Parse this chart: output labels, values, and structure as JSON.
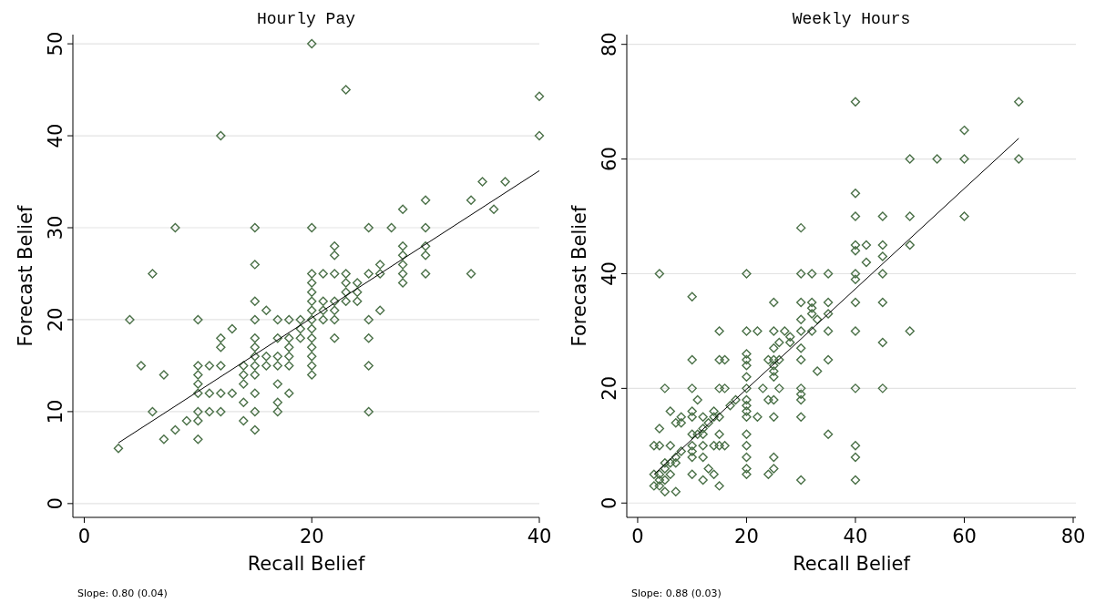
{
  "chart_data": [
    {
      "type": "scatter",
      "title": "Hourly Pay",
      "xlabel": "Recall Belief",
      "ylabel": "Forecast Belief",
      "xlim": [
        -1,
        40
      ],
      "ylim": [
        -1.5,
        51
      ],
      "xticks": [
        0,
        20,
        40
      ],
      "yticks": [
        0,
        10,
        20,
        30,
        40,
        50
      ],
      "grid": "y",
      "marker": "diamond",
      "annotations": [
        "Slope: 0.80 (0.04)"
      ],
      "series": [
        {
          "color": "#4a7047",
          "x": [
            3,
            4,
            5,
            6,
            6,
            7,
            7,
            8,
            8,
            9,
            10,
            10,
            10,
            10,
            10,
            10,
            10,
            10,
            11,
            11,
            11,
            12,
            12,
            12,
            12,
            12,
            12,
            13,
            13,
            14,
            14,
            14,
            14,
            14,
            15,
            15,
            15,
            15,
            15,
            15,
            15,
            15,
            15,
            15,
            15,
            15,
            16,
            16,
            16,
            17,
            17,
            17,
            17,
            17,
            17,
            17,
            18,
            18,
            18,
            18,
            18,
            18,
            19,
            19,
            19,
            20,
            20,
            20,
            20,
            20,
            20,
            20,
            20,
            20,
            20,
            20,
            20,
            20,
            20,
            21,
            21,
            21,
            21,
            22,
            22,
            22,
            22,
            22,
            22,
            22,
            23,
            23,
            23,
            23,
            23,
            24,
            24,
            24,
            25,
            25,
            25,
            25,
            25,
            25,
            26,
            26,
            26,
            27,
            28,
            28,
            28,
            28,
            28,
            28,
            30,
            30,
            30,
            30,
            30,
            34,
            34,
            35,
            36,
            37,
            40,
            40
          ],
          "values": [
            6,
            20,
            15,
            10,
            25,
            7,
            14,
            8,
            30,
            9,
            20,
            15,
            14,
            13,
            12,
            10,
            9,
            7,
            12,
            15,
            10,
            40,
            18,
            17,
            15,
            12,
            10,
            19,
            12,
            15,
            14,
            13,
            11,
            9,
            30,
            26,
            22,
            20,
            18,
            17,
            16,
            15,
            14,
            12,
            10,
            8,
            21,
            15,
            16,
            20,
            18,
            16,
            15,
            13,
            11,
            10,
            20,
            18,
            17,
            16,
            15,
            12,
            19,
            18,
            20,
            50,
            30,
            25,
            24,
            23,
            22,
            21,
            20,
            19,
            18,
            17,
            16,
            15,
            14,
            25,
            22,
            20,
            21,
            28,
            27,
            25,
            22,
            21,
            20,
            18,
            45,
            23,
            24,
            22,
            25,
            24,
            23,
            22,
            30,
            25,
            20,
            18,
            15,
            10,
            26,
            21,
            25,
            30,
            28,
            27,
            26,
            25,
            24,
            32,
            33,
            30,
            28,
            27,
            25,
            33,
            25,
            35,
            32,
            35,
            44.3,
            40
          ]
        },
        {
          "type": "line",
          "color": "#000000",
          "marker": "none",
          "x": [
            3,
            40
          ],
          "values": [
            6.6,
            36.2
          ]
        }
      ]
    },
    {
      "type": "scatter",
      "title": "Weekly Hours",
      "xlabel": "Recall Belief",
      "ylabel": "Forecast Belief",
      "xlim": [
        -2,
        80.5
      ],
      "ylim": [
        -2.5,
        81.7
      ],
      "xticks": [
        0,
        20,
        40,
        60,
        80
      ],
      "yticks": [
        0,
        20,
        40,
        60,
        80
      ],
      "grid": "y",
      "marker": "diamond",
      "annotations": [
        "Slope: 0.88 (0.03)"
      ],
      "series": [
        {
          "color": "#4a7047",
          "x": [
            70,
            70,
            40,
            60,
            60,
            55,
            50,
            40,
            40,
            45,
            50,
            60,
            40,
            42,
            45,
            50,
            40,
            42,
            45,
            40,
            40,
            45,
            30,
            30,
            32,
            35,
            20,
            4,
            10,
            25,
            30,
            32,
            35,
            40,
            45,
            32,
            32,
            33,
            30,
            35,
            30,
            32,
            35,
            40,
            50,
            45,
            15,
            20,
            22,
            25,
            27,
            28,
            28,
            26,
            25,
            30,
            30,
            35,
            25,
            26,
            24,
            25,
            25,
            25,
            33,
            20,
            20,
            20,
            20,
            10,
            15,
            16,
            5,
            10,
            15,
            16,
            20,
            23,
            26,
            30,
            30,
            30,
            40,
            45,
            11,
            20,
            24,
            25,
            18,
            17,
            6,
            10,
            20,
            20,
            20,
            22,
            25,
            30,
            8,
            7,
            8,
            10,
            12,
            14,
            15,
            14,
            13,
            12,
            4,
            10,
            11,
            12,
            15,
            20,
            35,
            3,
            4,
            6,
            10,
            12,
            14,
            15,
            16,
            20,
            40,
            10,
            8,
            7,
            10,
            12,
            20,
            25,
            40,
            5,
            6,
            7,
            13,
            20,
            25,
            3,
            4,
            5,
            6,
            10,
            14,
            20,
            24,
            3,
            4,
            5,
            4,
            5,
            7,
            12,
            15,
            30,
            40
          ],
          "values": [
            70,
            60,
            70,
            65,
            60,
            60,
            60,
            54,
            50,
            50,
            50,
            50,
            45,
            45,
            45,
            45,
            44,
            42,
            43,
            40,
            39,
            40,
            48,
            40,
            40,
            40,
            40,
            40,
            36,
            35,
            35,
            35,
            35,
            35,
            35,
            34,
            33,
            32,
            32,
            33,
            30,
            30,
            30,
            30,
            30,
            28,
            30,
            30,
            30,
            30,
            30,
            29,
            28,
            28,
            27,
            27,
            25,
            25,
            25,
            25,
            25,
            24,
            23,
            22,
            23,
            26,
            25,
            24,
            22,
            25,
            25,
            25,
            20,
            20,
            20,
            20,
            20,
            20,
            20,
            20,
            19,
            18,
            20,
            20,
            18,
            18,
            18,
            18,
            18,
            17,
            16,
            16,
            17,
            16,
            15,
            15,
            15,
            15,
            15,
            14,
            14,
            15,
            15,
            16,
            15,
            15,
            14,
            13,
            13,
            12,
            12,
            12,
            12,
            12,
            12,
            10,
            10,
            10,
            10,
            10,
            10,
            10,
            10,
            10,
            10,
            9,
            9,
            8,
            8,
            8,
            8,
            8,
            8,
            7,
            7,
            7,
            6,
            6,
            6,
            5,
            5,
            6,
            5,
            5,
            5,
            5,
            5,
            3,
            4,
            4,
            3,
            2,
            2,
            4,
            3,
            4,
            4
          ]
        },
        {
          "type": "line",
          "color": "#000000",
          "marker": "none",
          "x": [
            3,
            70
          ],
          "values": [
            5,
            63.6
          ]
        }
      ]
    }
  ]
}
